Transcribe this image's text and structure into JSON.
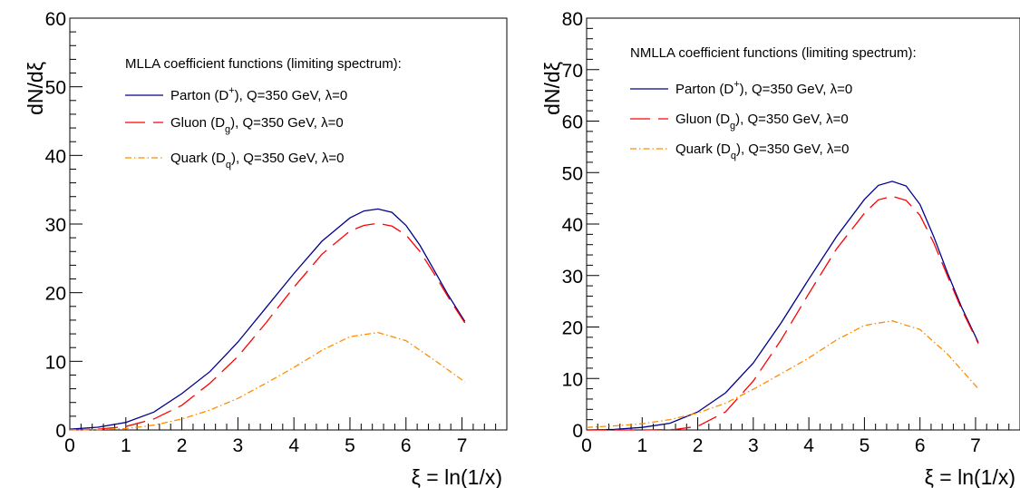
{
  "colors": {
    "parton": "#00008b",
    "gluon": "#ff0000",
    "quark": "#ff8c00"
  },
  "chart_data": [
    {
      "type": "line",
      "legend_title": "MLLA coefficient functions (limiting spectrum):",
      "xlabel": "ξ = ln(1/x)",
      "ylabel": "dN/dξ",
      "xlim": [
        0,
        7.8
      ],
      "ylim": [
        0,
        60
      ],
      "x_ticks": [
        "0",
        "1",
        "2",
        "3",
        "4",
        "5",
        "6",
        "7"
      ],
      "y_ticks": [
        "0",
        "10",
        "20",
        "30",
        "40",
        "50",
        "60"
      ],
      "legend_placement": "top-right",
      "grid": false,
      "series": [
        {
          "key": "parton",
          "name_main": "Parton (D",
          "name_sup": "+",
          "name_tail": "), Q=350 GeV, λ=0",
          "style": "solid",
          "x": [
            0,
            0.5,
            1,
            1.5,
            2,
            2.5,
            3,
            3.5,
            4,
            4.5,
            5,
            5.25,
            5.5,
            5.75,
            6,
            6.25,
            6.5,
            6.75,
            7.05
          ],
          "y": [
            0.1,
            0.4,
            1.1,
            2.6,
            5.3,
            8.5,
            12.8,
            17.8,
            22.8,
            27.5,
            30.9,
            31.9,
            32.2,
            31.7,
            29.8,
            26.9,
            23.3,
            19.7,
            15.8
          ]
        },
        {
          "key": "gluon",
          "name_main": "Gluon (D",
          "name_sub": "g",
          "name_tail": "), Q=350 GeV, λ=0",
          "style": "dashed",
          "x": [
            0,
            0.5,
            1,
            1.5,
            2,
            2.5,
            3,
            3.5,
            4,
            4.5,
            5,
            5.25,
            5.5,
            5.75,
            6,
            6.25,
            6.5,
            6.75,
            7.05
          ],
          "y": [
            0,
            0.1,
            0.5,
            1.6,
            3.6,
            6.8,
            10.7,
            15.6,
            20.8,
            25.6,
            29.0,
            29.8,
            30.1,
            29.7,
            28.4,
            26.0,
            22.8,
            19.4,
            15.6
          ]
        },
        {
          "key": "quark",
          "name_main": "Quark (D",
          "name_sub": "q",
          "name_tail": "), Q=350 GeV, λ=0",
          "style": "dashdot",
          "x": [
            0,
            0.5,
            1,
            1.5,
            2,
            2.5,
            3,
            3.5,
            4,
            4.5,
            5,
            5.5,
            6,
            6.5,
            7.05
          ],
          "y": [
            0,
            0.05,
            0.2,
            0.7,
            1.6,
            2.9,
            4.6,
            6.8,
            9.1,
            11.6,
            13.6,
            14.2,
            13.0,
            10.2,
            7.0
          ]
        }
      ]
    },
    {
      "type": "line",
      "legend_title": "NMLLA coefficient functions (limiting spectrum):",
      "xlabel": "ξ = ln(1/x)",
      "ylabel": "dN/dξ",
      "xlim": [
        0,
        7.8
      ],
      "ylim": [
        0,
        80
      ],
      "x_ticks": [
        "0",
        "1",
        "2",
        "3",
        "4",
        "5",
        "6",
        "7"
      ],
      "y_ticks": [
        "0",
        "10",
        "20",
        "30",
        "40",
        "50",
        "60",
        "70",
        "80"
      ],
      "legend_placement": "top-right",
      "grid": false,
      "series": [
        {
          "key": "parton",
          "name_main": "Parton (D",
          "name_sup": "+",
          "name_tail": "), Q=350 GeV, λ=0",
          "style": "solid",
          "x": [
            0,
            0.5,
            1,
            1.5,
            2,
            2.5,
            3,
            3.5,
            4,
            4.5,
            5,
            5.25,
            5.5,
            5.75,
            6,
            6.25,
            6.5,
            6.75,
            7.05
          ],
          "y": [
            0,
            0.1,
            0.5,
            1.3,
            3.5,
            7.2,
            13,
            20.8,
            29.3,
            37.6,
            44.8,
            47.5,
            48.3,
            47.4,
            43.8,
            37.5,
            30.4,
            23.8,
            17.0
          ]
        },
        {
          "key": "gluon",
          "name_main": "Gluon (D",
          "name_sub": "g",
          "name_tail": "), Q=350 GeV, λ=0",
          "style": "dashed",
          "x": [
            0,
            1,
            1.6,
            2,
            2.5,
            3,
            3.5,
            4,
            4.5,
            5,
            5.25,
            5.5,
            5.75,
            6,
            6.25,
            6.5,
            6.75,
            7.05
          ],
          "y": [
            0,
            0,
            0.1,
            0.7,
            3.5,
            9.5,
            17.5,
            26.5,
            35.2,
            42.1,
            44.7,
            45.4,
            44.6,
            41.7,
            36.3,
            29.8,
            23.4,
            16.8
          ]
        },
        {
          "key": "quark",
          "name_main": "Quark (D",
          "name_sub": "q",
          "name_tail": "), Q=350 GeV, λ=0",
          "style": "dashdot",
          "x": [
            0,
            0.5,
            1,
            1.5,
            2,
            2.5,
            3,
            3.5,
            4,
            4.5,
            5,
            5.5,
            6,
            6.5,
            7.05
          ],
          "y": [
            0.5,
            0.8,
            1.2,
            2.0,
            3.3,
            5.2,
            7.9,
            10.9,
            14.0,
            17.5,
            20.3,
            21.2,
            19.5,
            14.7,
            8.0
          ]
        }
      ]
    }
  ]
}
